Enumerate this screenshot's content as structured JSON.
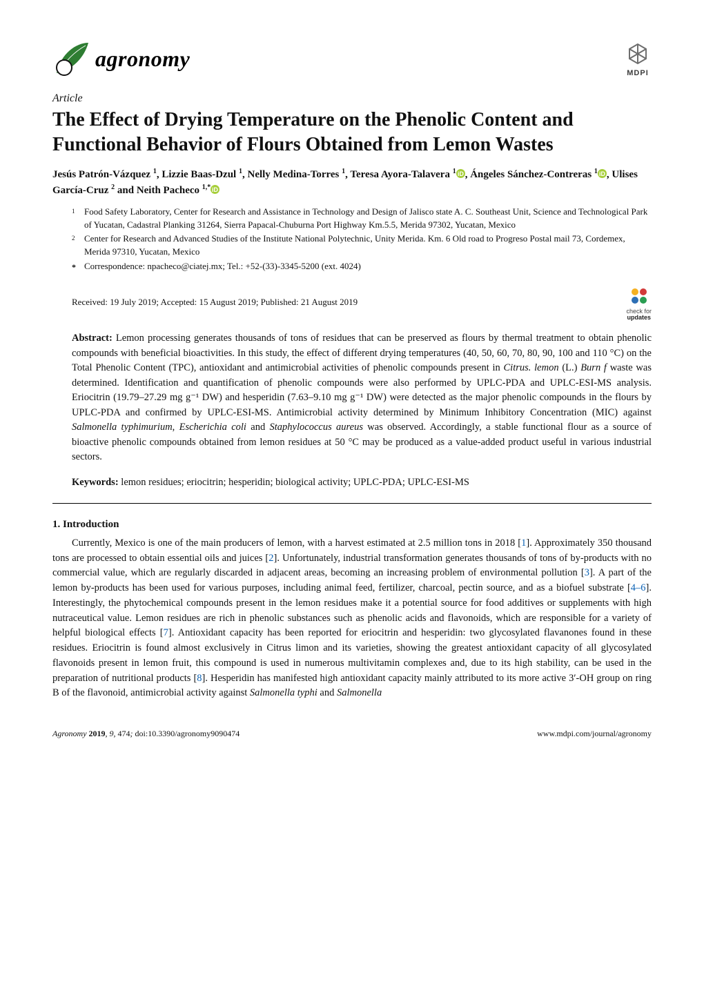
{
  "journal": {
    "name": "agronomy",
    "logo_colors": {
      "leaf": "#2e7d32",
      "circle_fill": "#ffffff",
      "circle_stroke": "#111111"
    }
  },
  "publisher": {
    "name": "MDPI",
    "colors": {
      "mark": "#6e6e6e",
      "text": "#3c3c3c"
    }
  },
  "article": {
    "type": "Article",
    "title": "The Effect of Drying Temperature on the Phenolic Content and Functional Behavior of Flours Obtained from Lemon Wastes",
    "authors_line_1": "Jesús Patrón-Vázquez ",
    "authors": [
      {
        "name": "Jesús Patrón-Vázquez",
        "sup": "1",
        "orcid": false
      },
      {
        "name": "Lizzie Baas-Dzul",
        "sup": "1",
        "orcid": false
      },
      {
        "name": "Nelly Medina-Torres",
        "sup": "1",
        "orcid": false
      },
      {
        "name": "Teresa Ayora-Talavera",
        "sup": "1",
        "orcid": true
      },
      {
        "name": "Ángeles Sánchez-Contreras",
        "sup": "1",
        "orcid": true
      },
      {
        "name": "Ulises García-Cruz",
        "sup": "2",
        "orcid": false
      },
      {
        "name": "Neith Pacheco",
        "sup": "1,*",
        "orcid": true
      }
    ],
    "affiliations": [
      {
        "num": "1",
        "text": "Food Safety Laboratory, Center for Research and Assistance in Technology and Design of Jalisco state A. C. Southeast Unit, Science and Technological Park of Yucatan, Cadastral Planking 31264, Sierra Papacal-Chuburna Port Highway Km.5.5, Merida 97302, Yucatan, Mexico"
      },
      {
        "num": "2",
        "text": "Center for Research and Advanced Studies of the Institute National Polytechnic, Unity Merida. Km. 6 Old road to Progreso Postal mail 73, Cordemex, Merida 97310, Yucatan, Mexico"
      }
    ],
    "correspondence": {
      "marker": "*",
      "text": "Correspondence: npacheco@ciatej.mx; Tel.: +52-(33)-3345-5200 (ext. 4024)"
    },
    "dates": "Received: 19 July 2019; Accepted: 15 August 2019; Published: 21 August 2019",
    "updates_badge": {
      "line1": "check for",
      "line2": "updates",
      "dot1": "#f5b021",
      "dot2": "#d23a3a",
      "dot3": "#2a9d52",
      "dot4": "#2e6fb5"
    },
    "abstract_label": "Abstract:",
    "abstract": "Lemon processing generates thousands of tons of residues that can be preserved as flours by thermal treatment to obtain phenolic compounds with beneficial bioactivities. In this study, the effect of different drying temperatures (40, 50, 60, 70, 80, 90, 100 and 110 °C) on the Total Phenolic Content (TPC), antioxidant and antimicrobial activities of phenolic compounds present in Citrus. lemon (L.) Burn f waste was determined. Identification and quantification of phenolic compounds were also performed by UPLC-PDA and UPLC-ESI-MS analysis. Eriocitrin (19.79–27.29 mg g⁻¹ DW) and hesperidin (7.63–9.10 mg g⁻¹ DW) were detected as the major phenolic compounds in the flours by UPLC-PDA and confirmed by UPLC-ESI-MS. Antimicrobial activity determined by Minimum Inhibitory Concentration (MIC) against Salmonella typhimurium, Escherichia coli and Staphylococcus aureus was observed. Accordingly, a stable functional flour as a source of bioactive phenolic compounds obtained from lemon residues at 50 °C may be produced as a value-added product useful in various industrial sectors.",
    "keywords_label": "Keywords:",
    "keywords": "lemon residues; eriocitrin; hesperidin; biological activity; UPLC-PDA; UPLC-ESI-MS",
    "section_heading": "1. Introduction",
    "body_paragraph": "Currently, Mexico is one of the main producers of lemon, with a harvest estimated at 2.5 million tons in 2018 [1]. Approximately 350 thousand tons are processed to obtain essential oils and juices [2]. Unfortunately, industrial transformation generates thousands of tons of by-products with no commercial value, which are regularly discarded in adjacent areas, becoming an increasing problem of environmental pollution [3]. A part of the lemon by-products has been used for various purposes, including animal feed, fertilizer, charcoal, pectin source, and as a biofuel substrate [4–6]. Interestingly, the phytochemical compounds present in the lemon residues make it a potential source for food additives or supplements with high nutraceutical value. Lemon residues are rich in phenolic substances such as phenolic acids and flavonoids, which are responsible for a variety of helpful biological effects [7]. Antioxidant capacity has been reported for eriocitrin and hesperidin: two glycosylated flavanones found in these residues. Eriocitrin is found almost exclusively in Citrus limon and its varieties, showing the greatest antioxidant capacity of all glycosylated flavonoids present in lemon fruit, this compound is used in numerous multivitamin complexes and, due to its high stability, can be used in the preparation of nutritional products [8]. Hesperidin has manifested high antioxidant capacity mainly attributed to its more active 3′-OH group on ring B of the flavonoid, antimicrobial activity against Salmonella typhi and Salmonella",
    "refs": {
      "r1": "1",
      "r2": "2",
      "r3": "3",
      "r46": "4–6",
      "r7": "7",
      "r8": "8"
    }
  },
  "footer": {
    "journal": "Agronomy",
    "year": "2019",
    "vol": "9",
    "page": "474",
    "doi": "doi:10.3390/agronomy9090474",
    "site": "www.mdpi.com/journal/agronomy"
  },
  "orcid_color": "#a6ce39"
}
